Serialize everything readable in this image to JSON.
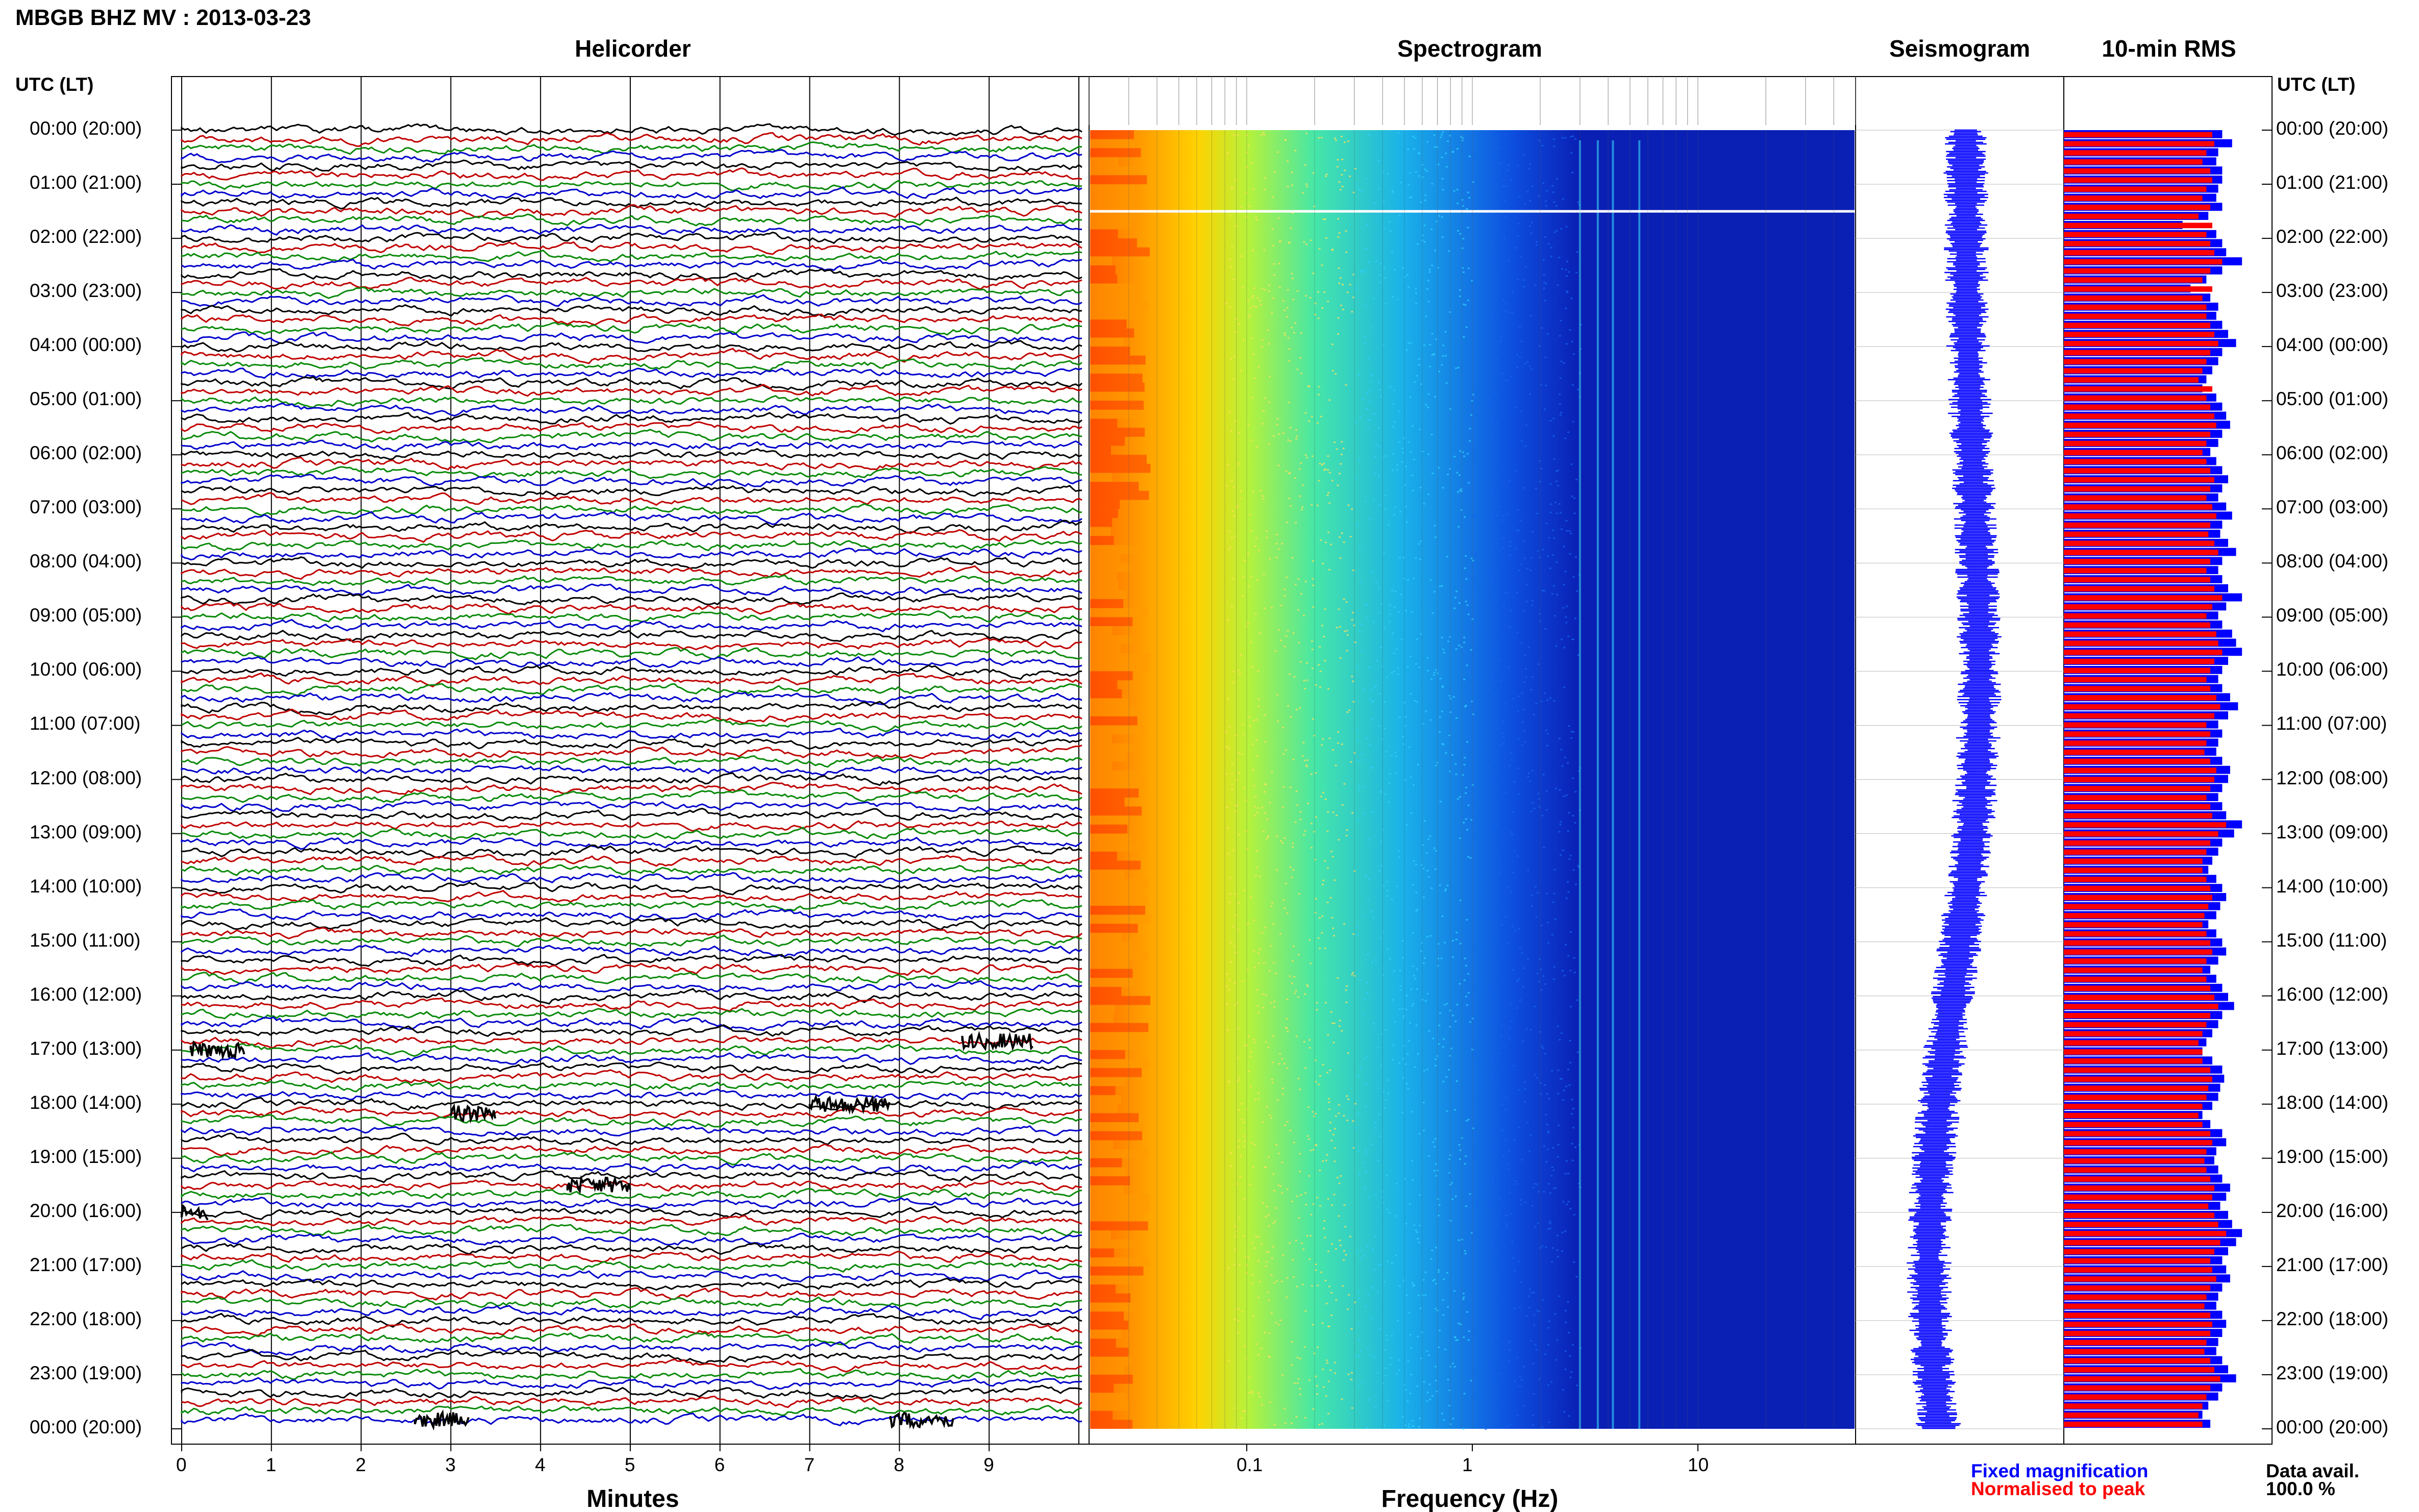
{
  "header": {
    "title": "MBGB BHZ MV : 2013-03-23"
  },
  "panels": {
    "helicorder": "Helicorder",
    "spectrogram": "Spectrogram",
    "seismogram": "Seismogram",
    "rms": "10-min RMS"
  },
  "time_axis": {
    "header": "UTC (LT)",
    "labels": [
      "00:00 (20:00)",
      "01:00 (21:00)",
      "02:00 (22:00)",
      "03:00 (23:00)",
      "04:00 (00:00)",
      "05:00 (01:00)",
      "06:00 (02:00)",
      "07:00 (03:00)",
      "08:00 (04:00)",
      "09:00 (05:00)",
      "10:00 (06:00)",
      "11:00 (07:00)",
      "12:00 (08:00)",
      "13:00 (09:00)",
      "14:00 (10:00)",
      "15:00 (11:00)",
      "16:00 (12:00)",
      "17:00 (13:00)",
      "18:00 (14:00)",
      "19:00 (15:00)",
      "20:00 (16:00)",
      "21:00 (17:00)",
      "22:00 (18:00)",
      "23:00 (19:00)",
      "00:00 (20:00)"
    ]
  },
  "helicorder_axis": {
    "label": "Minutes",
    "ticks": [
      "0",
      "1",
      "2",
      "3",
      "4",
      "5",
      "6",
      "7",
      "8",
      "9"
    ]
  },
  "spectrogram_axis": {
    "label": "Frequency (Hz)",
    "ticks": [
      "0.1",
      "1",
      "10"
    ]
  },
  "legend": {
    "fixed": "Fixed magnification",
    "normalised": "Normalised to peak",
    "avail_label": "Data avail.",
    "avail_value": "100.0 %"
  },
  "colors": {
    "trace_cycle": [
      "#000000",
      "#c00000",
      "#0a8a0a",
      "#0000cc"
    ],
    "rms_fixed": "#0000ff",
    "rms_normalised": "#ff0000",
    "seismogram": "#0000ff"
  },
  "chart_data": {
    "type": "heatmap",
    "helicorder": {
      "x_unit": "minutes",
      "xlim": [
        0,
        10
      ],
      "rows_per_hour": 6,
      "hours": 24,
      "events": [
        {
          "time_utc": "17:00",
          "minute_start": 0.1,
          "minute_end": 0.7
        },
        {
          "time_utc": "16:50",
          "minute_start": 8.7,
          "minute_end": 9.5
        },
        {
          "time_utc": "18:00",
          "minute_start": 7.0,
          "minute_end": 7.9
        },
        {
          "time_utc": "18:10",
          "minute_start": 3.0,
          "minute_end": 3.5
        },
        {
          "time_utc": "19:30",
          "minute_start": 4.3,
          "minute_end": 5.0
        },
        {
          "time_utc": "20:00",
          "minute_start": 0.0,
          "minute_end": 0.3
        },
        {
          "time_utc": "23:50",
          "minute_start": 2.6,
          "minute_end": 3.2
        },
        {
          "time_utc": "23:50",
          "minute_start": 7.9,
          "minute_end": 8.6
        }
      ]
    },
    "spectrogram": {
      "x_scale": "log",
      "xlim_hz": [
        0.02,
        50
      ],
      "color_bands": [
        {
          "from_hz": 0.02,
          "to_hz": 0.06,
          "color": "#ff6a00"
        },
        {
          "from_hz": 0.06,
          "to_hz": 0.1,
          "color": "#ffd200"
        },
        {
          "from_hz": 0.1,
          "to_hz": 0.2,
          "color": "#b7f23a"
        },
        {
          "from_hz": 0.2,
          "to_hz": 0.5,
          "color": "#46e6a8"
        },
        {
          "from_hz": 0.5,
          "to_hz": 1.5,
          "color": "#1ab0ea"
        },
        {
          "from_hz": 1.5,
          "to_hz": 3,
          "color": "#0d4fe0"
        },
        {
          "from_hz": 3,
          "to_hz": 50,
          "color": "#0a20b4"
        }
      ],
      "line_freqs_hz": [
        3.0,
        3.6,
        4.2,
        5.5
      ]
    },
    "rms": {
      "series": [
        {
          "name": "Fixed magnification",
          "values": [
            0.8,
            0.85,
            0.78,
            0.77,
            0.8,
            0.8,
            0.78,
            0.77,
            0.8,
            0.73,
            0.6,
            0.77,
            0.8,
            0.82,
            0.9,
            0.8,
            0.72,
            0.64,
            0.74,
            0.78,
            0.77,
            0.8,
            0.83,
            0.87,
            0.8,
            0.78,
            0.75,
            0.72,
            0.7,
            0.77,
            0.8,
            0.82,
            0.84,
            0.8,
            0.78,
            0.74,
            0.77,
            0.8,
            0.83,
            0.8,
            0.78,
            0.82,
            0.85,
            0.8,
            0.79,
            0.83,
            0.87,
            0.8,
            0.78,
            0.8,
            0.83,
            0.9,
            0.82,
            0.78,
            0.8,
            0.85,
            0.87,
            0.9,
            0.83,
            0.8,
            0.78,
            0.8,
            0.84,
            0.88,
            0.83,
            0.78,
            0.8,
            0.78,
            0.77,
            0.8,
            0.84,
            0.83,
            0.8,
            0.78,
            0.8,
            0.82,
            0.9,
            0.86,
            0.8,
            0.78,
            0.75,
            0.73,
            0.77,
            0.8,
            0.82,
            0.79,
            0.77,
            0.73,
            0.77,
            0.8,
            0.82,
            0.78,
            0.74,
            0.77,
            0.8,
            0.83,
            0.86,
            0.8,
            0.78,
            0.75,
            0.72,
            0.7,
            0.75,
            0.8,
            0.81,
            0.79,
            0.78,
            0.75,
            0.7,
            0.74,
            0.8,
            0.82,
            0.77,
            0.76,
            0.78,
            0.8,
            0.84,
            0.82,
            0.79,
            0.83,
            0.85,
            0.9,
            0.87,
            0.83,
            0.8,
            0.82,
            0.84,
            0.8,
            0.78,
            0.77,
            0.8,
            0.82,
            0.8,
            0.78,
            0.77,
            0.8,
            0.83,
            0.87,
            0.8,
            0.78,
            0.73,
            0.7,
            0.74
          ]
        },
        {
          "name": "Normalised to peak",
          "values": [
            0.75,
            0.76,
            0.72,
            0.7,
            0.74,
            0.75,
            0.72,
            0.7,
            0.74,
            0.68,
            0.75,
            0.72,
            0.74,
            0.76,
            0.8,
            0.74,
            0.7,
            0.75,
            0.7,
            0.72,
            0.72,
            0.74,
            0.76,
            0.78,
            0.74,
            0.72,
            0.7,
            0.68,
            0.75,
            0.72,
            0.74,
            0.76,
            0.77,
            0.74,
            0.72,
            0.7,
            0.72,
            0.74,
            0.76,
            0.74,
            0.72,
            0.75,
            0.77,
            0.74,
            0.73,
            0.76,
            0.78,
            0.74,
            0.72,
            0.74,
            0.76,
            0.8,
            0.75,
            0.72,
            0.74,
            0.77,
            0.78,
            0.8,
            0.76,
            0.74,
            0.72,
            0.74,
            0.77,
            0.79,
            0.76,
            0.72,
            0.74,
            0.72,
            0.71,
            0.74,
            0.77,
            0.76,
            0.74,
            0.72,
            0.74,
            0.75,
            0.82,
            0.78,
            0.74,
            0.72,
            0.7,
            0.7,
            0.72,
            0.74,
            0.75,
            0.73,
            0.71,
            0.7,
            0.72,
            0.74,
            0.75,
            0.72,
            0.7,
            0.72,
            0.74,
            0.76,
            0.78,
            0.74,
            0.72,
            0.7,
            0.68,
            0.7,
            0.7,
            0.74,
            0.75,
            0.73,
            0.72,
            0.7,
            0.68,
            0.7,
            0.74,
            0.75,
            0.72,
            0.71,
            0.72,
            0.74,
            0.76,
            0.75,
            0.73,
            0.76,
            0.78,
            0.82,
            0.79,
            0.76,
            0.74,
            0.75,
            0.77,
            0.74,
            0.72,
            0.71,
            0.74,
            0.75,
            0.74,
            0.72,
            0.71,
            0.74,
            0.76,
            0.79,
            0.74,
            0.72,
            0.7,
            0.68,
            0.7
          ]
        }
      ]
    }
  }
}
